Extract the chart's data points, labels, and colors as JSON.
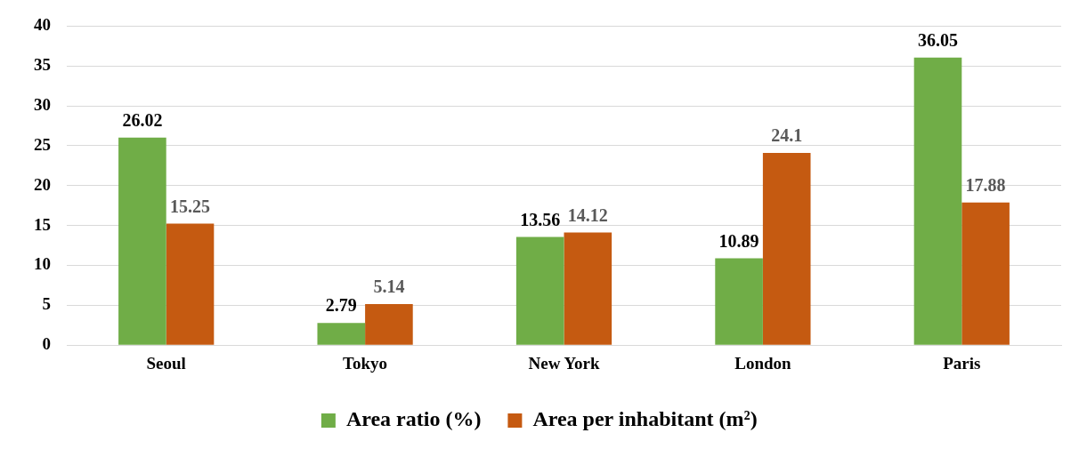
{
  "chart_data": {
    "type": "bar",
    "categories": [
      "Seoul",
      "Tokyo",
      "New York",
      "London",
      "Paris"
    ],
    "series": [
      {
        "name": "Area ratio (%)",
        "color": "#70ad47",
        "values": [
          26.02,
          2.79,
          13.56,
          10.89,
          36.05
        ]
      },
      {
        "name": "Area per inhabitant (m²)",
        "color": "#c55a11",
        "values": [
          15.25,
          5.14,
          14.12,
          24.1,
          17.88
        ]
      }
    ],
    "ylim": [
      0,
      40
    ],
    "yticks": [
      0,
      5,
      10,
      15,
      20,
      25,
      30,
      35,
      40
    ],
    "grid": "y",
    "legend": "bottom",
    "data_labels": true
  }
}
